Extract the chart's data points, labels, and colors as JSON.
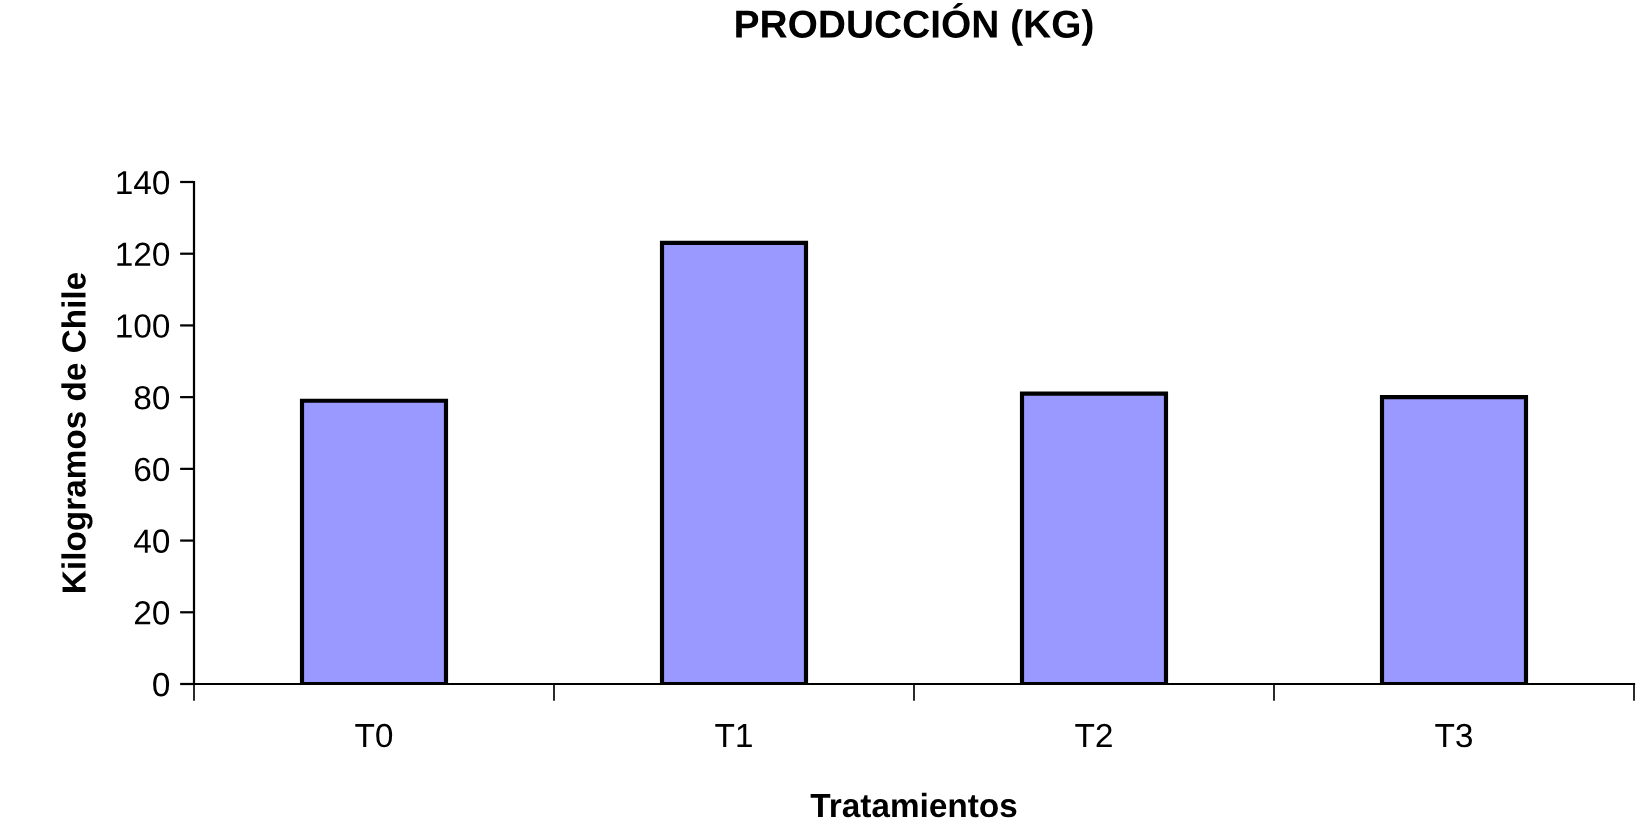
{
  "chart_data": {
    "type": "bar",
    "title": "PRODUCCIÓN (KG)",
    "xlabel": "Tratamientos",
    "ylabel": "Kilogramos de Chile",
    "categories": [
      "T0",
      "T1",
      "T2",
      "T3"
    ],
    "values": [
      79,
      123,
      81,
      80
    ],
    "color": "#9999ff",
    "ylim": [
      0,
      140
    ],
    "yticks": [
      0,
      20,
      40,
      60,
      80,
      100,
      120,
      140
    ],
    "grid": false,
    "legend": false
  }
}
